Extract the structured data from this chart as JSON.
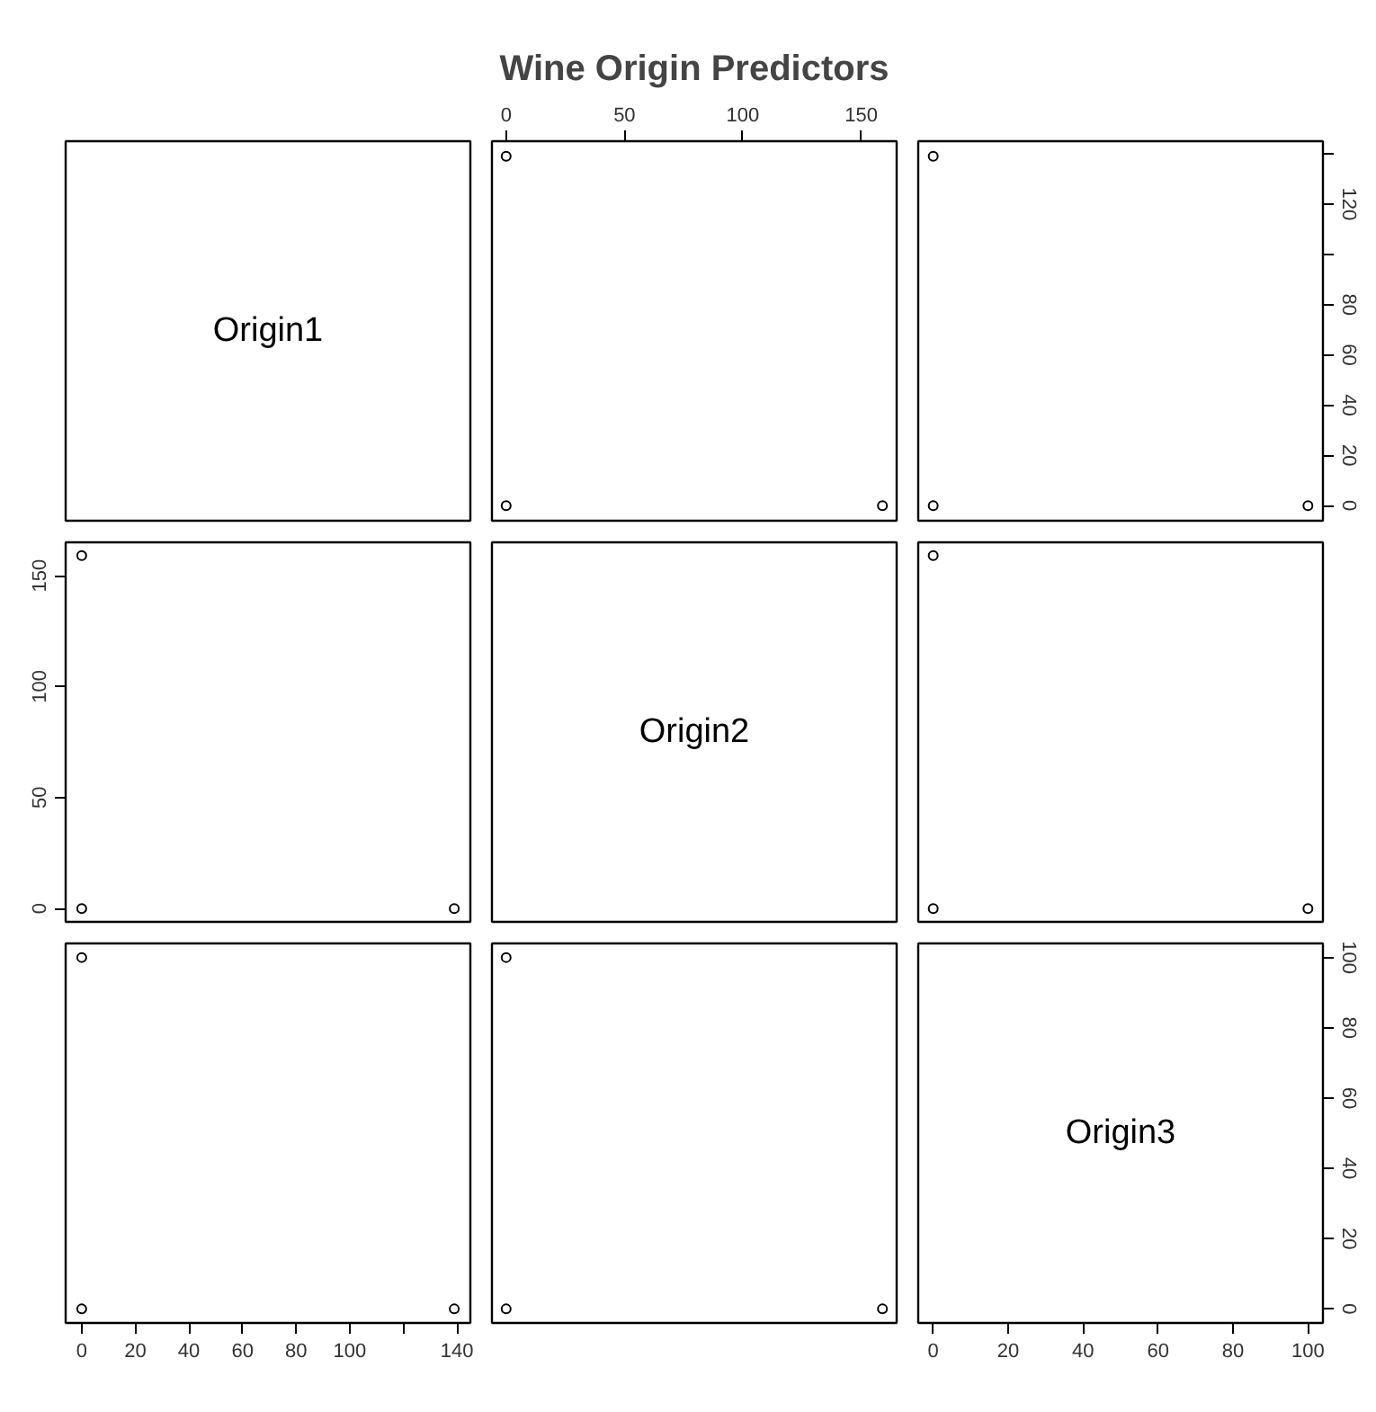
{
  "chart_data": [
    {
      "type": "scatter",
      "annotations": [
        "Origin1"
      ],
      "xlim": [
        -6,
        145
      ],
      "ylim": [
        -6,
        145
      ],
      "tick_labels": false
    },
    {
      "type": "scatter",
      "title": "Wine Origin Predictors",
      "x": [
        0,
        0,
        159
      ],
      "values": [
        139,
        0,
        0
      ],
      "xlim": [
        -6,
        165
      ],
      "ylim": [
        -6,
        145
      ],
      "xticks": [
        0,
        50,
        100,
        150
      ],
      "tick_labels": "x",
      "marker": "circle"
    },
    {
      "type": "scatter",
      "x": [
        0,
        0,
        100
      ],
      "values": [
        139,
        0,
        0
      ],
      "xlim": [
        -4,
        104
      ],
      "ylim": [
        -6,
        145
      ],
      "yticks": [
        0,
        20,
        40,
        60,
        80,
        {
          "value": 100,
          "label": null
        },
        120,
        {
          "value": 140,
          "label": null
        }
      ],
      "tick_labels": "y",
      "marker": "circle"
    },
    {
      "type": "scatter",
      "x": [
        139,
        0,
        0
      ],
      "values": [
        0,
        159,
        0
      ],
      "xlim": [
        -6,
        145
      ],
      "ylim": [
        -6,
        165
      ],
      "yticks": [
        0,
        50,
        100,
        150
      ],
      "tick_labels": "y",
      "marker": "circle"
    },
    {
      "type": "scatter",
      "annotations": [
        "Origin2"
      ],
      "xlim": [
        -6,
        165
      ],
      "ylim": [
        -6,
        165
      ],
      "tick_labels": false
    },
    {
      "type": "scatter",
      "x": [
        0,
        0,
        100
      ],
      "values": [
        0,
        159,
        0
      ],
      "xlim": [
        -4,
        104
      ],
      "ylim": [
        -6,
        165
      ],
      "tick_labels": false,
      "marker": "circle"
    },
    {
      "type": "scatter",
      "x": [
        139,
        0,
        0
      ],
      "values": [
        0,
        0,
        100
      ],
      "xlim": [
        -6,
        145
      ],
      "ylim": [
        -4,
        104
      ],
      "xticks": [
        0,
        20,
        40,
        60,
        80,
        100,
        {
          "value": 120,
          "label": null
        },
        140
      ],
      "tick_labels": "x",
      "marker": "circle"
    },
    {
      "type": "scatter",
      "x": [
        0,
        159,
        0
      ],
      "values": [
        0,
        0,
        100
      ],
      "xlim": [
        -6,
        165
      ],
      "ylim": [
        -4,
        104
      ],
      "tick_labels": false,
      "marker": "circle"
    },
    {
      "type": "scatter",
      "annotations": [
        "Origin3"
      ],
      "xlim": [
        -4,
        104
      ],
      "ylim": [
        -4,
        104
      ],
      "xticks": [
        0,
        20,
        40,
        60,
        80,
        100
      ],
      "yticks": [
        0,
        20,
        40,
        60,
        80,
        100
      ]
    }
  ]
}
